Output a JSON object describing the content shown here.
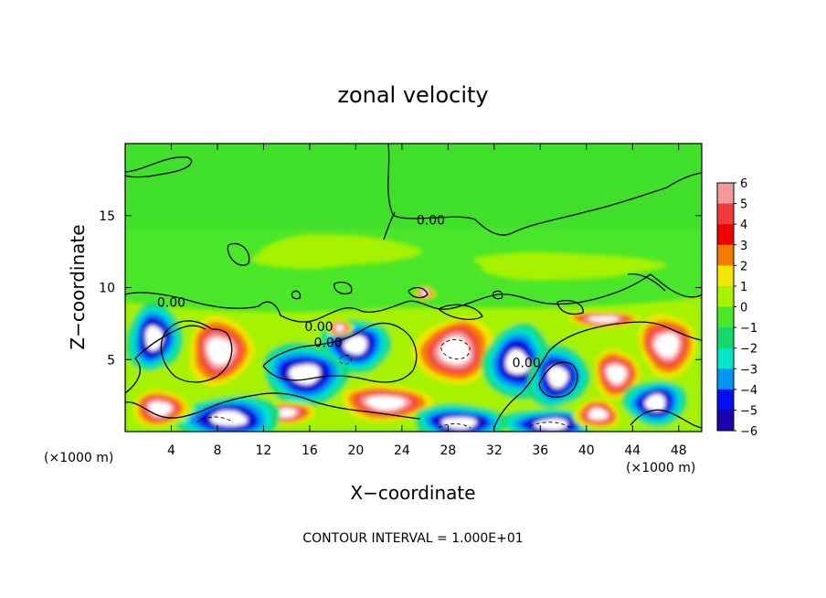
{
  "chart_data": {
    "type": "heatmap",
    "title": "zonal velocity",
    "xlabel": "X−coordinate",
    "ylabel": "Z−coordinate",
    "x_unit_left": "(×1000 m)",
    "x_unit_right": "(×1000 m)",
    "xlim": [
      0,
      50
    ],
    "ylim": [
      0,
      20
    ],
    "x_ticks": [
      4,
      8,
      12,
      16,
      20,
      24,
      28,
      32,
      36,
      40,
      44,
      48
    ],
    "y_ticks": [
      5,
      10,
      15
    ],
    "colorbar_levels": [
      6,
      5,
      4,
      3,
      2,
      1,
      0,
      -1,
      -2,
      -3,
      -4,
      -5,
      -6
    ],
    "colorbar_labels": [
      "6",
      "5",
      "4",
      "3",
      "2",
      "1",
      "0",
      "−1",
      "−2",
      "−3",
      "−4",
      "−5",
      "−6"
    ],
    "contour_labels": [
      {
        "text": "0.00",
        "x": 26.5,
        "z": 14.7
      },
      {
        "text": "0.00",
        "x": 4.0,
        "z": 9.0
      },
      {
        "text": "0.00",
        "x": 16.8,
        "z": 7.3
      },
      {
        "text": "0.00",
        "x": 17.6,
        "z": 6.2
      },
      {
        "text": "0.00",
        "x": 34.8,
        "z": 4.8
      }
    ],
    "footer": "CONTOUR INTERVAL = 1.000E+01",
    "grid": false,
    "colors": {
      "l6": "#f29a9a",
      "l5": "#f23a3a",
      "l4": "#f20000",
      "l3": "#f77a00",
      "l2": "#f2e600",
      "l1": "#a6f200",
      "l0": "#4ae62a",
      "lm1": "#16d86a",
      "lm2": "#00e6c8",
      "lm3": "#0096f2",
      "lm4": "#0010f0",
      "lm5": "#1a00b0",
      "lm6": "#7a00a6",
      "extreme": "#ffffff"
    }
  }
}
